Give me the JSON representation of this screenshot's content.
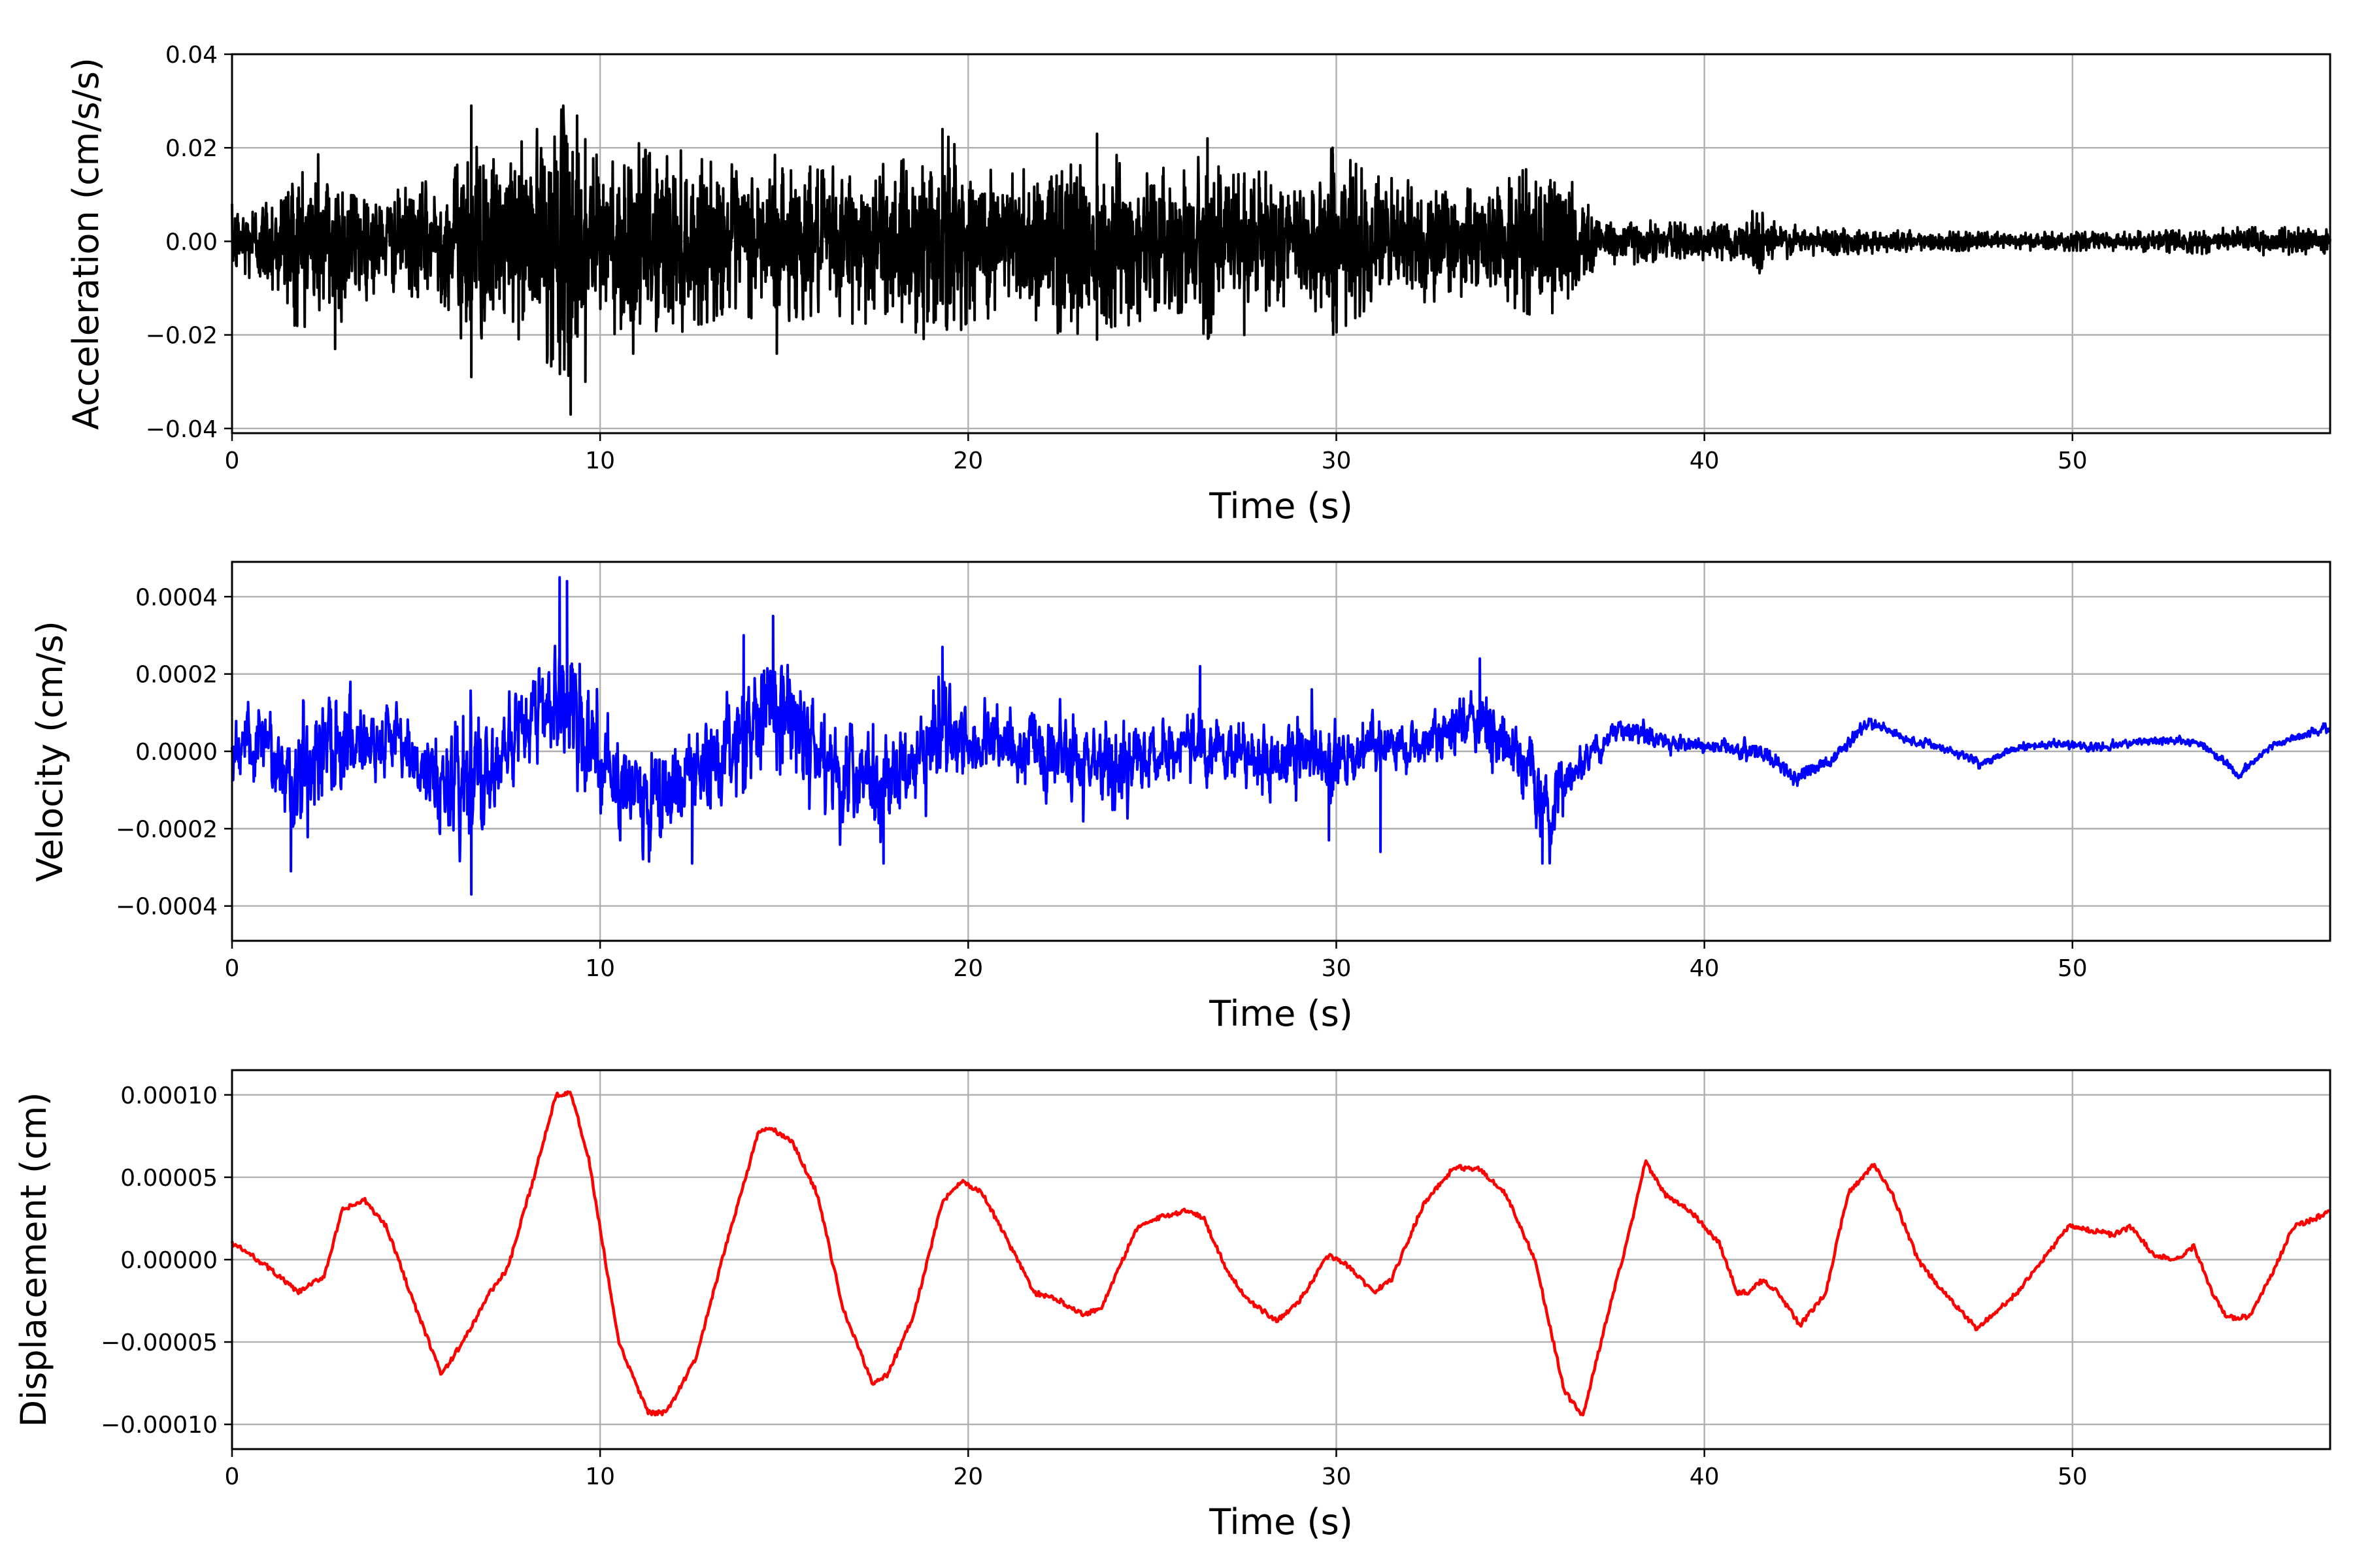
{
  "chart_data": [
    {
      "type": "line",
      "title": "",
      "xlabel": "Time (s)",
      "ylabel": "Acceleration (cm/s/s)",
      "xlim": [
        0,
        57
      ],
      "ylim": [
        -0.041,
        0.04
      ],
      "xticks": [
        0,
        10,
        20,
        30,
        40,
        50
      ],
      "xtick_labels": [
        "0",
        "10",
        "20",
        "30",
        "40",
        "50"
      ],
      "yticks": [
        -0.04,
        -0.02,
        0.0,
        0.02,
        0.04
      ],
      "ytick_labels": [
        "−0.04",
        "−0.02",
        "0.00",
        "0.02",
        "0.04"
      ],
      "grid": true,
      "color": "#000000",
      "series": [
        {
          "x": [
            0,
            1,
            1.7,
            2.8,
            4,
            5,
            6,
            6.5,
            7,
            8,
            9,
            9.5,
            10,
            11,
            12,
            13,
            14,
            14.8,
            16,
            17,
            18,
            19.3,
            20,
            21,
            22,
            23,
            23.5,
            24,
            25,
            26,
            26.5,
            27,
            28,
            29,
            29.9,
            31,
            32,
            33,
            34,
            35,
            35.8,
            36.5,
            37,
            38,
            39,
            40,
            41,
            41.5,
            42,
            43,
            45,
            47,
            49,
            51,
            53,
            54.5,
            56,
            57
          ],
          "envelope": [
            0.008,
            0.011,
            0.018,
            0.019,
            0.01,
            0.012,
            0.015,
            0.028,
            0.017,
            0.022,
            0.029,
            0.028,
            0.019,
            0.021,
            0.02,
            0.017,
            0.016,
            0.019,
            0.015,
            0.018,
            0.016,
            0.024,
            0.017,
            0.016,
            0.017,
            0.023,
            0.016,
            0.019,
            0.016,
            0.015,
            0.021,
            0.014,
            0.015,
            0.013,
            0.02,
            0.014,
            0.013,
            0.013,
            0.01,
            0.015,
            0.017,
            0.012,
            0.006,
            0.005,
            0.004,
            0.004,
            0.004,
            0.008,
            0.004,
            0.003,
            0.0025,
            0.002,
            0.002,
            0.002,
            0.0025,
            0.003,
            0.003,
            0.0025
          ],
          "peaks": [
            {
              "x": 1.7,
              "y": -0.018
            },
            {
              "x": 2.8,
              "y": -0.023
            },
            {
              "x": 6.5,
              "y": 0.029
            },
            {
              "x": 6.5,
              "y": -0.029
            },
            {
              "x": 9.0,
              "y": 0.029
            },
            {
              "x": 9.2,
              "y": -0.037
            },
            {
              "x": 9.6,
              "y": -0.03
            },
            {
              "x": 10.9,
              "y": -0.024
            },
            {
              "x": 19.3,
              "y": 0.024
            },
            {
              "x": 14.8,
              "y": -0.024
            },
            {
              "x": 23.5,
              "y": 0.023
            },
            {
              "x": 23.5,
              "y": -0.021
            },
            {
              "x": 26.5,
              "y": 0.022
            },
            {
              "x": 27.5,
              "y": -0.02
            },
            {
              "x": 29.9,
              "y": 0.02
            },
            {
              "x": 29.9,
              "y": -0.017
            }
          ]
        }
      ]
    },
    {
      "type": "line",
      "title": "",
      "xlabel": "Time (s)",
      "ylabel": "Velocity (cm/s)",
      "xlim": [
        0,
        57
      ],
      "ylim": [
        -0.00049,
        0.00049
      ],
      "xticks": [
        0,
        10,
        20,
        30,
        40,
        50
      ],
      "xtick_labels": [
        "0",
        "10",
        "20",
        "30",
        "40",
        "50"
      ],
      "yticks": [
        -0.0004,
        -0.0002,
        0.0,
        0.0002,
        0.0004
      ],
      "ytick_labels": [
        "−0.0004",
        "−0.0002",
        "0.0000",
        "0.0002",
        "0.0004"
      ],
      "grid": true,
      "color": "#0000ff",
      "series": [
        {
          "x": [
            0,
            1,
            1.6,
            2.5,
            3.5,
            4.5,
            5.5,
            6.5,
            7.5,
            8.5,
            9.0,
            9.5,
            10.5,
            11.5,
            12.5,
            13.5,
            14.5,
            15.5,
            16.5,
            17.5,
            18.5,
            19.3,
            20,
            21,
            22,
            23,
            24,
            25,
            26,
            27,
            28,
            29,
            30,
            31,
            32,
            33,
            34,
            35,
            35.8,
            36.5,
            37.5,
            38.5,
            39.5,
            40.5,
            41.5,
            42.5,
            43.5,
            44.5,
            45.5,
            46.5,
            47.5,
            48.5,
            49.5,
            50.5,
            51.5,
            52.5,
            53.5,
            54.5,
            55.5,
            57
          ],
          "center": [
            1e-05,
            1e-05,
            -0.0001,
            3e-05,
            4e-05,
            2e-05,
            -7e-05,
            -8e-05,
            1e-05,
            0.00014,
            0.00015,
            3e-05,
            -9e-05,
            -0.00012,
            -8e-05,
            0.0,
            0.00012,
            6e-05,
            -5e-05,
            -0.0001,
            -5e-05,
            6e-05,
            2e-05,
            4e-05,
            0.0,
            -3e-05,
            -6e-05,
            0.0,
            2e-05,
            1e-05,
            -4e-05,
            0.0,
            -3e-05,
            2e-05,
            1e-05,
            5e-05,
            9e-05,
            0.0,
            -0.00016,
            -6e-05,
            5e-05,
            4e-05,
            2e-05,
            1e-05,
            0.0,
            -7e-05,
            -2e-05,
            8e-05,
            3e-05,
            1e-05,
            -3e-05,
            1e-05,
            2e-05,
            1e-05,
            2e-05,
            3e-05,
            2e-05,
            -6e-05,
            2e-05,
            6e-05
          ],
          "amplitude": [
            8e-05,
            0.0001,
            0.00014,
            0.00015,
            0.0001,
            8e-05,
            0.00011,
            0.00018,
            0.0001,
            0.00012,
            0.0002,
            0.00015,
            0.00012,
            0.00012,
            0.00011,
            0.00012,
            0.00016,
            0.00013,
            0.00011,
            0.00012,
            0.0001,
            0.00013,
            8e-05,
            8e-05,
            0.0001,
            0.00011,
            0.0001,
            8e-05,
            8e-05,
            8e-05,
            8e-05,
            9e-05,
            9e-05,
            7e-05,
            6e-05,
            6e-05,
            8e-05,
            8e-05,
            0.0001,
            5e-05,
            3e-05,
            3e-05,
            2e-05,
            2e-05,
            2e-05,
            2e-05,
            1.5e-05,
            1.5e-05,
            1e-05,
            1e-05,
            1e-05,
            1e-05,
            1e-05,
            1e-05,
            1e-05,
            1e-05,
            1e-05,
            1e-05,
            1e-05,
            1e-05
          ],
          "peaks": [
            {
              "x": 8.9,
              "y": 0.00045
            },
            {
              "x": 9.1,
              "y": 0.00044
            },
            {
              "x": 6.5,
              "y": -0.00037
            },
            {
              "x": 1.6,
              "y": -0.00031
            },
            {
              "x": 14.7,
              "y": 0.00035
            },
            {
              "x": 13.9,
              "y": 0.0003
            },
            {
              "x": 19.3,
              "y": 0.00027
            },
            {
              "x": 33.9,
              "y": 0.00024
            },
            {
              "x": 12.5,
              "y": -0.00029
            },
            {
              "x": 17.7,
              "y": -0.00029
            },
            {
              "x": 35.6,
              "y": -0.00029
            },
            {
              "x": 26.3,
              "y": 0.00022
            },
            {
              "x": 29.8,
              "y": -0.00023
            },
            {
              "x": 31.2,
              "y": -0.00026
            }
          ]
        }
      ]
    },
    {
      "type": "line",
      "title": "",
      "xlabel": "Time (s)",
      "ylabel": "Displacement (cm)",
      "xlim": [
        0,
        57
      ],
      "ylim": [
        -0.000115,
        0.000115
      ],
      "xticks": [
        0,
        10,
        20,
        30,
        40,
        50
      ],
      "xtick_labels": [
        "0",
        "10",
        "20",
        "30",
        "40",
        "50"
      ],
      "yticks": [
        -0.0001,
        -5e-05,
        0.0,
        5e-05,
        0.0001
      ],
      "ytick_labels": [
        "−0.00010",
        "−0.00005",
        "0.00000",
        "0.00005",
        "0.00010"
      ],
      "grid": true,
      "color": "#ff0000",
      "series": [
        {
          "x": [
            0,
            0.5,
            1.0,
            1.8,
            2.5,
            3.0,
            3.6,
            4.2,
            5.0,
            5.7,
            6.4,
            7.0,
            7.5,
            8.2,
            8.8,
            9.2,
            9.7,
            10.5,
            11.3,
            11.8,
            12.6,
            13.5,
            14.3,
            14.6,
            15.2,
            15.9,
            16.6,
            17.4,
            17.8,
            18.5,
            19.3,
            19.8,
            20.4,
            21.1,
            21.8,
            22.5,
            23.1,
            23.6,
            24.0,
            24.6,
            25.4,
            26.0,
            26.4,
            27.0,
            27.6,
            28.4,
            29.0,
            29.8,
            30.4,
            31.0,
            31.5,
            32.4,
            33.2,
            33.9,
            34.6,
            35.4,
            36.2,
            36.7,
            37.3,
            38.0,
            38.4,
            38.9,
            39.6,
            40.4,
            40.9,
            41.2,
            41.6,
            42.0,
            42.6,
            43.3,
            43.9,
            44.6,
            45.1,
            45.8,
            46.5,
            47.4,
            48.0,
            48.5,
            49.2,
            49.9,
            50.5,
            51.1,
            51.6,
            52.2,
            52.8,
            53.3,
            53.8,
            54.2,
            54.8,
            55.4,
            56.0,
            56.6,
            57.0
          ],
          "y": [
            1e-05,
            3e-06,
            -5e-06,
            -2e-05,
            -1e-05,
            3e-05,
            3.6e-05,
            2e-05,
            -3e-05,
            -7e-05,
            -4.5e-05,
            -2e-05,
            -5e-06,
            5e-05,
            0.0001,
            0.000102,
            6e-05,
            -5e-05,
            -9.3e-05,
            -9.3e-05,
            -6e-05,
            1.5e-05,
            7.7e-05,
            8e-05,
            7.2e-05,
            4e-05,
            -3e-05,
            -7.5e-05,
            -7e-05,
            -3.5e-05,
            3.5e-05,
            4.8e-05,
            4e-05,
            1e-05,
            -2e-05,
            -2.5e-05,
            -3.3e-05,
            -3e-05,
            -1e-05,
            2e-05,
            2.7e-05,
            3e-05,
            2.5e-05,
            -5e-06,
            -2.5e-05,
            -3.7e-05,
            -2.5e-05,
            3e-06,
            -5e-06,
            -2e-05,
            -1.2e-05,
            3.5e-05,
            5.6e-05,
            5.5e-05,
            4e-05,
            0.0,
            -8e-05,
            -9.5e-05,
            -4e-05,
            2e-05,
            6e-05,
            4e-05,
            3e-05,
            1e-05,
            -2e-05,
            -2e-05,
            -1.2e-05,
            -2e-05,
            -4e-05,
            -2e-05,
            4e-05,
            5.8e-05,
            4e-05,
            0.0,
            -2e-05,
            -4.2e-05,
            -3e-05,
            -2e-05,
            0.0,
            2e-05,
            1.8e-05,
            1.5e-05,
            2e-05,
            3e-06,
            0.0,
            8e-06,
            -2e-05,
            -3.5e-05,
            -3.5e-05,
            -1e-05,
            2e-05,
            2.5e-05,
            3e-05
          ]
        }
      ]
    }
  ]
}
